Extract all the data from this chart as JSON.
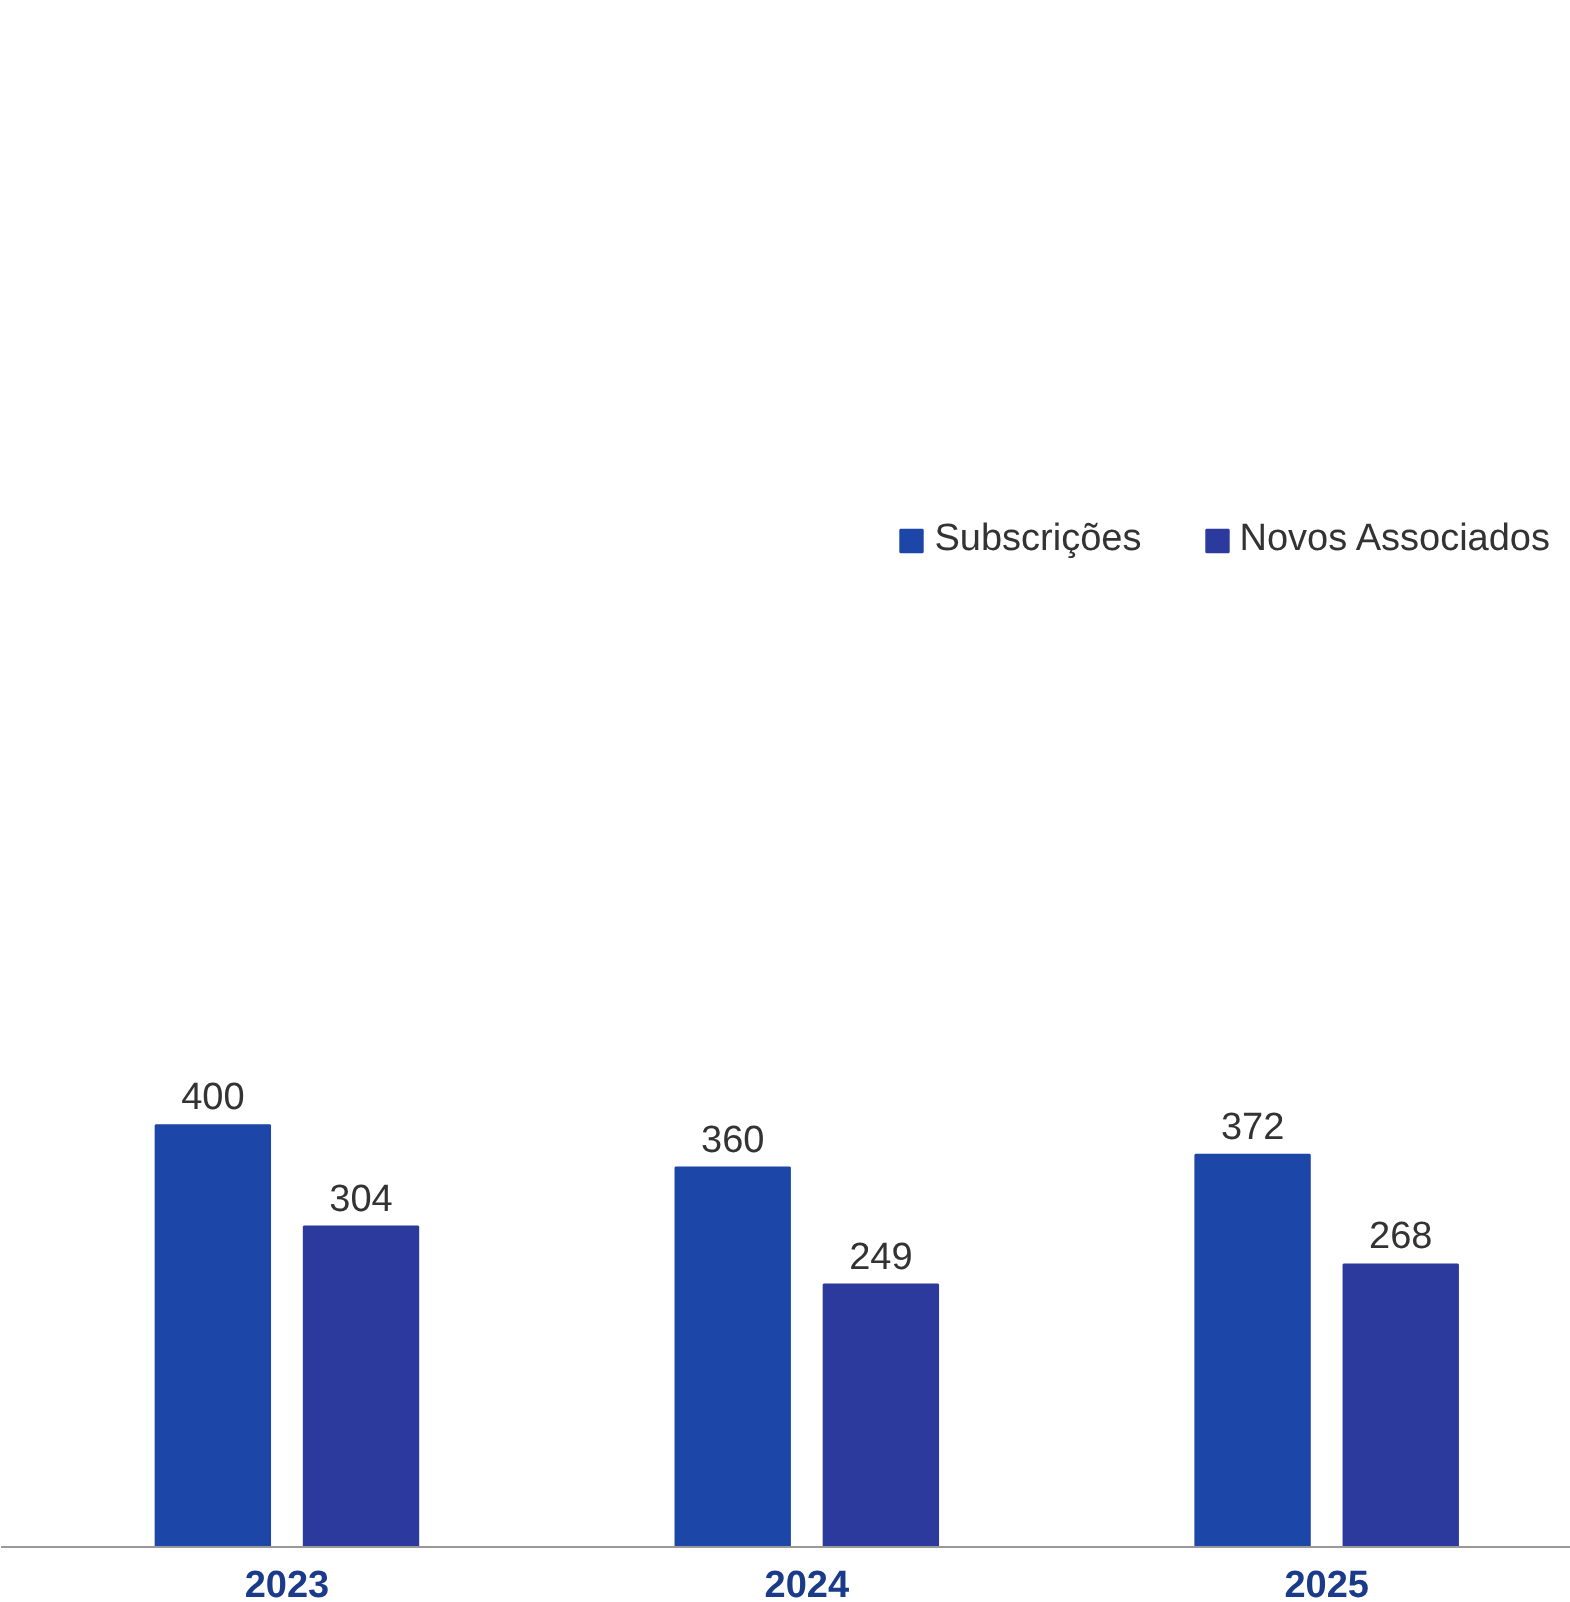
{
  "chart_data": {
    "type": "bar",
    "categories": [
      "2023",
      "2024",
      "2025"
    ],
    "series": [
      {
        "name": "Subscrições",
        "color": "#1c46a8",
        "values": [
          400,
          360,
          372
        ]
      },
      {
        "name": "Novos Associados",
        "color": "#2b3a9c",
        "values": [
          304,
          249,
          268
        ]
      }
    ],
    "data_labels": true,
    "legend": "top",
    "grid": false
  }
}
